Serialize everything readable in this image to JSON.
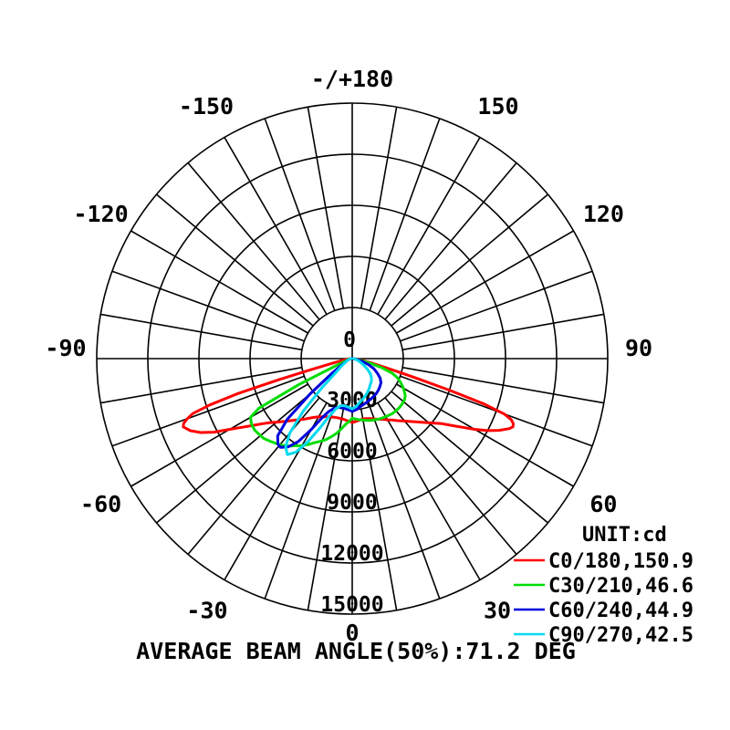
{
  "caption": "AVERAGE BEAM ANGLE(50%):71.2 DEG",
  "legend": {
    "title": "UNIT:cd",
    "entries": [
      {
        "label": "C0/180,150.9",
        "color": "#FF0000"
      },
      {
        "label": "C30/210,46.6",
        "color": "#00DD00"
      },
      {
        "label": "C60/240,44.9",
        "color": "#0000DD"
      },
      {
        "label": "C90/270,42.5",
        "color": "#00D9EF"
      }
    ]
  },
  "chart_data": {
    "type": "polar-photometric",
    "unit": "cd",
    "radial_max": 15000,
    "radial_ticks": [
      0,
      3000,
      6000,
      9000,
      12000,
      15000
    ],
    "radial_tick_labels": [
      "0",
      "3000",
      "6000",
      "9000",
      "12000",
      "15000"
    ],
    "spoke_step_deg": 10,
    "zero_direction": "down",
    "angle_labels": [
      {
        "text": "-/+180",
        "deg": 180
      },
      {
        "text": "-150",
        "deg": -150
      },
      {
        "text": "150",
        "deg": 150
      },
      {
        "text": "-120",
        "deg": -120
      },
      {
        "text": "120",
        "deg": 120
      },
      {
        "text": "-90",
        "deg": -90
      },
      {
        "text": "90",
        "deg": 90
      },
      {
        "text": "-60",
        "deg": -60
      },
      {
        "text": "60",
        "deg": 60
      },
      {
        "text": "-30",
        "deg": -30
      },
      {
        "text": "30",
        "deg": 30
      },
      {
        "text": "0",
        "deg": 0
      }
    ],
    "average_beam_angle_50pct_deg": 71.2,
    "series": [
      {
        "plane": "C0/180",
        "beam_angle_deg": 150.9,
        "color": "#FF0000",
        "points": [
          [
            -90,
            50
          ],
          [
            -85,
            200
          ],
          [
            -80,
            500
          ],
          [
            -77,
            1100
          ],
          [
            -75,
            2500
          ],
          [
            -74,
            4500
          ],
          [
            -73,
            7000
          ],
          [
            -72,
            8800
          ],
          [
            -71,
            9900
          ],
          [
            -70,
            10300
          ],
          [
            -69,
            10600
          ],
          [
            -68,
            10700
          ],
          [
            -66,
            10400
          ],
          [
            -64,
            9900
          ],
          [
            -62,
            9200
          ],
          [
            -60,
            8300
          ],
          [
            -58,
            7600
          ],
          [
            -56,
            7000
          ],
          [
            -54,
            6500
          ],
          [
            -52,
            6100
          ],
          [
            -50,
            5800
          ],
          [
            -47,
            5400
          ],
          [
            -44,
            5050
          ],
          [
            -41,
            4750
          ],
          [
            -38,
            4500
          ],
          [
            -35,
            4250
          ],
          [
            -32,
            4050
          ],
          [
            -29,
            3900
          ],
          [
            -26,
            3800
          ],
          [
            -23,
            3700
          ],
          [
            -20,
            3650
          ],
          [
            -17,
            3600
          ],
          [
            -14,
            3580
          ],
          [
            -11,
            3580
          ],
          [
            -8,
            3600
          ],
          [
            -5,
            3650
          ],
          [
            -2,
            3700
          ],
          [
            0,
            3750
          ],
          [
            3,
            3700
          ],
          [
            6,
            3650
          ],
          [
            9,
            3600
          ],
          [
            12,
            3600
          ],
          [
            15,
            3650
          ],
          [
            18,
            3700
          ],
          [
            21,
            3800
          ],
          [
            24,
            3900
          ],
          [
            27,
            4000
          ],
          [
            30,
            4150
          ],
          [
            33,
            4300
          ],
          [
            36,
            4500
          ],
          [
            39,
            4700
          ],
          [
            42,
            4950
          ],
          [
            45,
            5250
          ],
          [
            48,
            5600
          ],
          [
            51,
            6000
          ],
          [
            54,
            6500
          ],
          [
            56,
            7000
          ],
          [
            58,
            7600
          ],
          [
            60,
            8300
          ],
          [
            62,
            9000
          ],
          [
            64,
            9600
          ],
          [
            66,
            10100
          ],
          [
            67,
            10250
          ],
          [
            68,
            10200
          ],
          [
            69,
            10000
          ],
          [
            70,
            9500
          ],
          [
            71,
            8200
          ],
          [
            72,
            6000
          ],
          [
            73,
            4000
          ],
          [
            74,
            2800
          ],
          [
            75,
            2000
          ],
          [
            77,
            1200
          ],
          [
            80,
            600
          ],
          [
            85,
            250
          ],
          [
            90,
            50
          ]
        ]
      },
      {
        "plane": "C30/210",
        "beam_angle_deg": 46.6,
        "color": "#00DD00",
        "points": [
          [
            -90,
            50
          ],
          [
            -80,
            200
          ],
          [
            -72,
            350
          ],
          [
            -68,
            600
          ],
          [
            -66,
            1200
          ],
          [
            -64,
            3500
          ],
          [
            -62,
            6200
          ],
          [
            -60,
            6900
          ],
          [
            -57,
            7050
          ],
          [
            -54,
            7100
          ],
          [
            -51,
            7050
          ],
          [
            -48,
            7000
          ],
          [
            -45,
            6850
          ],
          [
            -42,
            6700
          ],
          [
            -39,
            6550
          ],
          [
            -36,
            6350
          ],
          [
            -33,
            6100
          ],
          [
            -30,
            5900
          ],
          [
            -27,
            5650
          ],
          [
            -24,
            5400
          ],
          [
            -21,
            5200
          ],
          [
            -18,
            5000
          ],
          [
            -15,
            4750
          ],
          [
            -12,
            4500
          ],
          [
            -9,
            4200
          ],
          [
            -6,
            3900
          ],
          [
            -3,
            3700
          ],
          [
            0,
            3500
          ],
          [
            3,
            3550
          ],
          [
            6,
            3600
          ],
          [
            9,
            3650
          ],
          [
            12,
            3700
          ],
          [
            15,
            3760
          ],
          [
            18,
            3800
          ],
          [
            21,
            3840
          ],
          [
            24,
            3880
          ],
          [
            27,
            3910
          ],
          [
            30,
            3930
          ],
          [
            33,
            3960
          ],
          [
            36,
            3990
          ],
          [
            40,
            4000
          ],
          [
            44,
            3990
          ],
          [
            48,
            3960
          ],
          [
            52,
            3900
          ],
          [
            55,
            3800
          ],
          [
            58,
            3600
          ],
          [
            61,
            3400
          ],
          [
            64,
            3150
          ],
          [
            67,
            2900
          ],
          [
            70,
            2500
          ],
          [
            73,
            1800
          ],
          [
            76,
            1000
          ],
          [
            80,
            400
          ],
          [
            85,
            150
          ],
          [
            90,
            50
          ]
        ]
      },
      {
        "plane": "C60/240",
        "beam_angle_deg": 44.9,
        "color": "#0000DD",
        "points": [
          [
            -90,
            50
          ],
          [
            -80,
            150
          ],
          [
            -70,
            300
          ],
          [
            -62,
            500
          ],
          [
            -58,
            800
          ],
          [
            -54,
            1500
          ],
          [
            -50,
            3200
          ],
          [
            -47,
            5200
          ],
          [
            -44,
            6300
          ],
          [
            -41,
            6650
          ],
          [
            -39,
            6700
          ],
          [
            -36,
            6400
          ],
          [
            -33,
            5800
          ],
          [
            -30,
            4800
          ],
          [
            -27,
            3900
          ],
          [
            -24,
            3400
          ],
          [
            -20,
            3100
          ],
          [
            -15,
            2950
          ],
          [
            -10,
            2950
          ],
          [
            -5,
            3000
          ],
          [
            0,
            3100
          ],
          [
            5,
            3000
          ],
          [
            10,
            2850
          ],
          [
            15,
            2750
          ],
          [
            20,
            2680
          ],
          [
            25,
            2600
          ],
          [
            30,
            2550
          ],
          [
            35,
            2480
          ],
          [
            40,
            2400
          ],
          [
            45,
            2300
          ],
          [
            50,
            2200
          ],
          [
            55,
            2000
          ],
          [
            60,
            1700
          ],
          [
            65,
            1400
          ],
          [
            70,
            1000
          ],
          [
            75,
            600
          ],
          [
            80,
            300
          ],
          [
            90,
            50
          ]
        ]
      },
      {
        "plane": "C90/270",
        "beam_angle_deg": 42.5,
        "color": "#00D9EF",
        "points": [
          [
            -90,
            50
          ],
          [
            -80,
            150
          ],
          [
            -70,
            300
          ],
          [
            -60,
            500
          ],
          [
            -55,
            800
          ],
          [
            -50,
            1200
          ],
          [
            -46,
            2500
          ],
          [
            -43,
            4200
          ],
          [
            -40,
            5700
          ],
          [
            -37,
            6500
          ],
          [
            -34,
            6800
          ],
          [
            -31,
            6400
          ],
          [
            -28,
            5500
          ],
          [
            -25,
            4500
          ],
          [
            -22,
            3700
          ],
          [
            -18,
            3100
          ],
          [
            -14,
            2850
          ],
          [
            -10,
            2800
          ],
          [
            -5,
            2850
          ],
          [
            0,
            2950
          ],
          [
            5,
            2800
          ],
          [
            10,
            2600
          ],
          [
            15,
            2450
          ],
          [
            20,
            2300
          ],
          [
            25,
            2150
          ],
          [
            30,
            2000
          ],
          [
            35,
            1850
          ],
          [
            40,
            1750
          ],
          [
            45,
            1600
          ],
          [
            50,
            1400
          ],
          [
            55,
            1100
          ],
          [
            60,
            800
          ],
          [
            65,
            550
          ],
          [
            70,
            400
          ],
          [
            75,
            280
          ],
          [
            80,
            200
          ],
          [
            90,
            80
          ]
        ]
      }
    ]
  }
}
